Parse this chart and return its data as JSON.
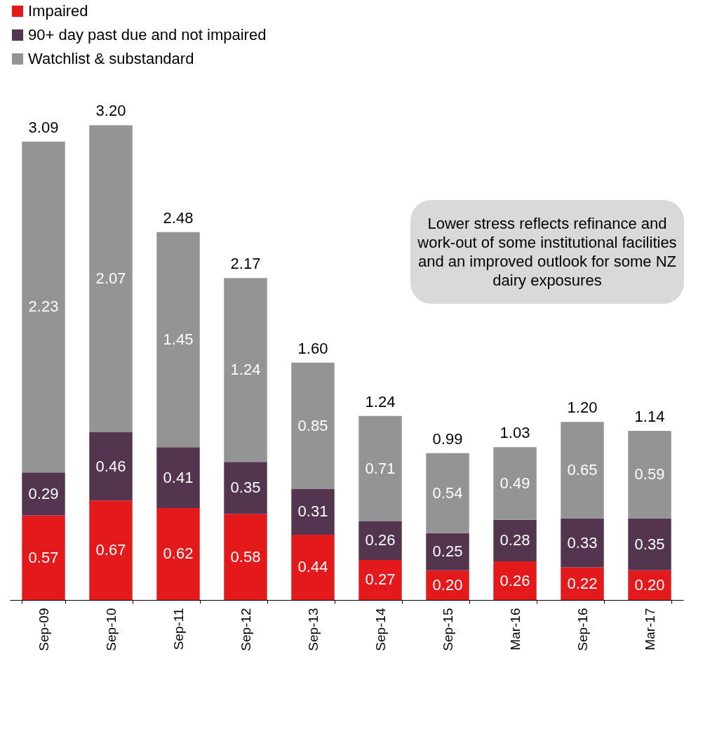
{
  "chart_data": {
    "type": "bar",
    "stacked": true,
    "legend": "top",
    "categories": [
      "Sep-09",
      "Sep-10",
      "Sep-11",
      "Sep-12",
      "Sep-13",
      "Sep-14",
      "Sep-15",
      "Mar-16",
      "Sep-16",
      "Mar-17"
    ],
    "series": [
      {
        "name": "Impaired",
        "color": "#e3191b",
        "values": [
          0.57,
          0.67,
          0.62,
          0.58,
          0.44,
          0.27,
          0.2,
          0.26,
          0.22,
          0.2
        ],
        "value_labels": [
          "0.57",
          "0.67",
          "0.62",
          "0.58",
          "0.44",
          "0.27",
          "0.20",
          "0.26",
          "0.22",
          "0.20"
        ]
      },
      {
        "name": "90+ day past due and not impaired",
        "color": "#533550",
        "values": [
          0.29,
          0.46,
          0.41,
          0.35,
          0.31,
          0.26,
          0.25,
          0.28,
          0.33,
          0.35
        ],
        "value_labels": [
          "0.29",
          "0.46",
          "0.41",
          "0.35",
          "0.31",
          "0.26",
          "0.25",
          "0.28",
          "0.33",
          "0.35"
        ]
      },
      {
        "name": "Watchlist & substandard",
        "color": "#949494",
        "values": [
          2.23,
          2.07,
          1.45,
          1.24,
          0.85,
          0.71,
          0.54,
          0.49,
          0.65,
          0.59
        ],
        "value_labels": [
          "2.23",
          "2.07",
          "1.45",
          "1.24",
          "0.85",
          "0.71",
          "0.54",
          "0.49",
          "0.65",
          "0.59"
        ]
      }
    ],
    "totals": [
      "3.09",
      "3.20",
      "2.48",
      "2.17",
      "1.60",
      "1.24",
      "0.99",
      "1.03",
      "1.20",
      "1.14"
    ],
    "annotations": [
      "Lower stress reflects refinance and work-out of some institutional facilities and an improved outlook for some NZ dairy exposures"
    ]
  }
}
